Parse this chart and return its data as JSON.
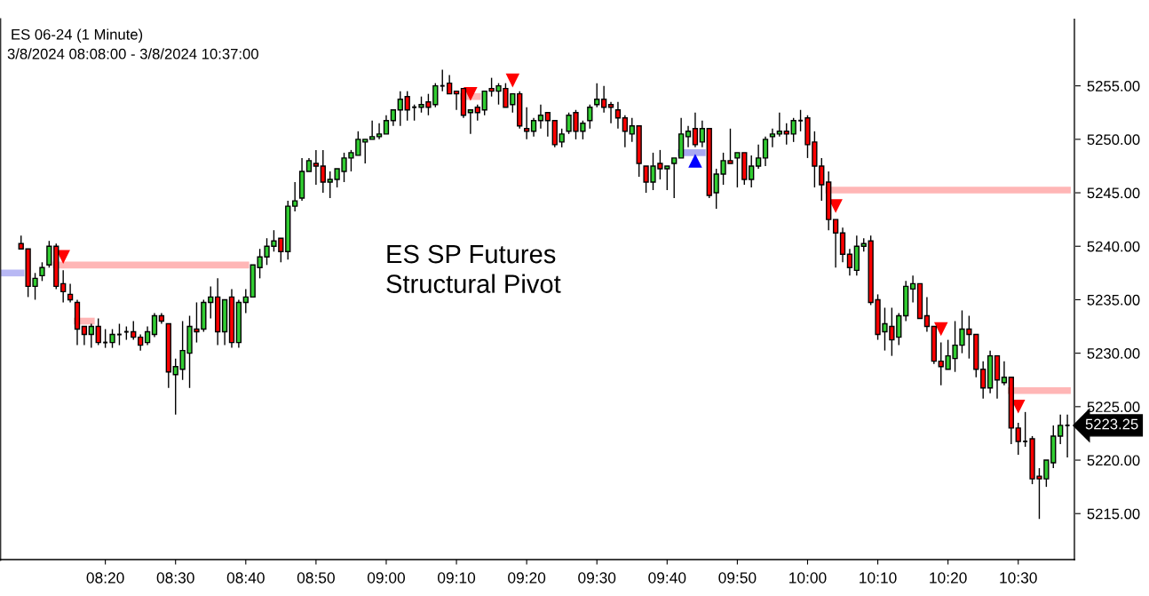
{
  "chart_data": {
    "type": "candlestick",
    "title": "ES 06-24 (1 Minute)",
    "subtitle": "3/8/2024 08:08:00 - 3/8/2024 10:37:00",
    "x": [
      "2024-03-08T08:08",
      "2024-03-08T08:09",
      "2024-03-08T08:10",
      "2024-03-08T08:11",
      "2024-03-08T08:12",
      "2024-03-08T08:13",
      "2024-03-08T08:14",
      "2024-03-08T08:15",
      "2024-03-08T08:16",
      "2024-03-08T08:17",
      "2024-03-08T08:18",
      "2024-03-08T08:19",
      "2024-03-08T08:20",
      "2024-03-08T08:21",
      "2024-03-08T08:22",
      "2024-03-08T08:23",
      "2024-03-08T08:24",
      "2024-03-08T08:25",
      "2024-03-08T08:26",
      "2024-03-08T08:27",
      "2024-03-08T08:28",
      "2024-03-08T08:29",
      "2024-03-08T08:30",
      "2024-03-08T08:31",
      "2024-03-08T08:32",
      "2024-03-08T08:33",
      "2024-03-08T08:34",
      "2024-03-08T08:35",
      "2024-03-08T08:36",
      "2024-03-08T08:37",
      "2024-03-08T08:38",
      "2024-03-08T08:39",
      "2024-03-08T08:40",
      "2024-03-08T08:41",
      "2024-03-08T08:42",
      "2024-03-08T08:43",
      "2024-03-08T08:44",
      "2024-03-08T08:45",
      "2024-03-08T08:46",
      "2024-03-08T08:47",
      "2024-03-08T08:48",
      "2024-03-08T08:49",
      "2024-03-08T08:50",
      "2024-03-08T08:51",
      "2024-03-08T08:52",
      "2024-03-08T08:53",
      "2024-03-08T08:54",
      "2024-03-08T08:55",
      "2024-03-08T08:56",
      "2024-03-08T08:57",
      "2024-03-08T08:58",
      "2024-03-08T08:59",
      "2024-03-08T09:00",
      "2024-03-08T09:01",
      "2024-03-08T09:02",
      "2024-03-08T09:03",
      "2024-03-08T09:04",
      "2024-03-08T09:05",
      "2024-03-08T09:06",
      "2024-03-08T09:07",
      "2024-03-08T09:08",
      "2024-03-08T09:09",
      "2024-03-08T09:10",
      "2024-03-08T09:11",
      "2024-03-08T09:12",
      "2024-03-08T09:13",
      "2024-03-08T09:14",
      "2024-03-08T09:15",
      "2024-03-08T09:16",
      "2024-03-08T09:17",
      "2024-03-08T09:18",
      "2024-03-08T09:19",
      "2024-03-08T09:20",
      "2024-03-08T09:21",
      "2024-03-08T09:22",
      "2024-03-08T09:23",
      "2024-03-08T09:24",
      "2024-03-08T09:25",
      "2024-03-08T09:26",
      "2024-03-08T09:27",
      "2024-03-08T09:28",
      "2024-03-08T09:29",
      "2024-03-08T09:30",
      "2024-03-08T09:31",
      "2024-03-08T09:32",
      "2024-03-08T09:33",
      "2024-03-08T09:34",
      "2024-03-08T09:35",
      "2024-03-08T09:36",
      "2024-03-08T09:37",
      "2024-03-08T09:38",
      "2024-03-08T09:39",
      "2024-03-08T09:40",
      "2024-03-08T09:41",
      "2024-03-08T09:42",
      "2024-03-08T09:43",
      "2024-03-08T09:44",
      "2024-03-08T09:45",
      "2024-03-08T09:46",
      "2024-03-08T09:47",
      "2024-03-08T09:48",
      "2024-03-08T09:49",
      "2024-03-08T09:50",
      "2024-03-08T09:51",
      "2024-03-08T09:52",
      "2024-03-08T09:53",
      "2024-03-08T09:54",
      "2024-03-08T09:55",
      "2024-03-08T09:56",
      "2024-03-08T09:57",
      "2024-03-08T09:58",
      "2024-03-08T09:59",
      "2024-03-08T10:00",
      "2024-03-08T10:01",
      "2024-03-08T10:02",
      "2024-03-08T10:03",
      "2024-03-08T10:04",
      "2024-03-08T10:05",
      "2024-03-08T10:06",
      "2024-03-08T10:07",
      "2024-03-08T10:08",
      "2024-03-08T10:09",
      "2024-03-08T10:10",
      "2024-03-08T10:11",
      "2024-03-08T10:12",
      "2024-03-08T10:13",
      "2024-03-08T10:14",
      "2024-03-08T10:15",
      "2024-03-08T10:16",
      "2024-03-08T10:17",
      "2024-03-08T10:18",
      "2024-03-08T10:19",
      "2024-03-08T10:20",
      "2024-03-08T10:21",
      "2024-03-08T10:22",
      "2024-03-08T10:23",
      "2024-03-08T10:24",
      "2024-03-08T10:25",
      "2024-03-08T10:26",
      "2024-03-08T10:27",
      "2024-03-08T10:28",
      "2024-03-08T10:29",
      "2024-03-08T10:30",
      "2024-03-08T10:31",
      "2024-03-08T10:32",
      "2024-03-08T10:33",
      "2024-03-08T10:34",
      "2024-03-08T10:35",
      "2024-03-08T10:36",
      "2024-03-08T10:37"
    ],
    "ohlc": [
      [
        5240.25,
        5241.0,
        5239.75,
        5239.75
      ],
      [
        5239.75,
        5239.75,
        5235.25,
        5236.25
      ],
      [
        5236.25,
        5237.5,
        5235.0,
        5237.0
      ],
      [
        5237.25,
        5238.5,
        5236.75,
        5238.0
      ],
      [
        5238.25,
        5240.5,
        5238.0,
        5240.0
      ],
      [
        5240.0,
        5240.25,
        5236.0,
        5236.25
      ],
      [
        5236.5,
        5237.75,
        5234.75,
        5235.75
      ],
      [
        5235.5,
        5236.5,
        5234.75,
        5235.0
      ],
      [
        5234.75,
        5235.0,
        5230.75,
        5232.25
      ],
      [
        5232.5,
        5232.5,
        5230.75,
        5231.75
      ],
      [
        5231.75,
        5232.75,
        5230.5,
        5232.5
      ],
      [
        5232.5,
        5233.25,
        5230.75,
        5231.0
      ],
      [
        5231.0,
        5232.25,
        5230.5,
        5231.0
      ],
      [
        5231.0,
        5232.25,
        5230.5,
        5231.75
      ],
      [
        5231.75,
        5232.75,
        5230.75,
        5231.75
      ],
      [
        5232.0,
        5232.5,
        5231.25,
        5232.0
      ],
      [
        5232.0,
        5233.0,
        5231.25,
        5231.5
      ],
      [
        5231.5,
        5231.75,
        5230.25,
        5230.75
      ],
      [
        5231.0,
        5232.5,
        5230.75,
        5232.0
      ],
      [
        5231.75,
        5233.75,
        5231.5,
        5233.5
      ],
      [
        5233.5,
        5233.75,
        5232.75,
        5233.0
      ],
      [
        5232.75,
        5232.75,
        5226.75,
        5228.25
      ],
      [
        5228.0,
        5229.5,
        5224.25,
        5228.75
      ],
      [
        5228.5,
        5233.0,
        5227.5,
        5230.25
      ],
      [
        5230.0,
        5233.5,
        5226.75,
        5232.5
      ],
      [
        5232.25,
        5234.75,
        5231.0,
        5232.0
      ],
      [
        5232.25,
        5235.0,
        5232.0,
        5234.75
      ],
      [
        5234.75,
        5236.25,
        5233.25,
        5235.25
      ],
      [
        5235.25,
        5237.0,
        5230.75,
        5232.0
      ],
      [
        5232.0,
        5235.0,
        5230.75,
        5235.0
      ],
      [
        5235.25,
        5236.0,
        5230.5,
        5231.0
      ],
      [
        5231.0,
        5235.0,
        5230.5,
        5234.75
      ],
      [
        5234.75,
        5236.0,
        5233.75,
        5235.25
      ],
      [
        5235.25,
        5238.25,
        5235.25,
        5238.25
      ],
      [
        5238.0,
        5239.75,
        5237.0,
        5239.0
      ],
      [
        5239.0,
        5240.75,
        5238.25,
        5240.0
      ],
      [
        5240.0,
        5241.5,
        5239.5,
        5240.5
      ],
      [
        5240.75,
        5240.75,
        5238.5,
        5239.5
      ],
      [
        5239.5,
        5244.25,
        5238.75,
        5243.75
      ],
      [
        5243.75,
        5246.0,
        5243.25,
        5244.25
      ],
      [
        5244.5,
        5248.25,
        5244.25,
        5247.0
      ],
      [
        5247.0,
        5248.25,
        5247.0,
        5248.0
      ],
      [
        5247.75,
        5249.0,
        5245.75,
        5247.5
      ],
      [
        5247.5,
        5249.0,
        5245.0,
        5246.0
      ],
      [
        5246.0,
        5247.0,
        5244.5,
        5246.25
      ],
      [
        5246.25,
        5247.25,
        5245.5,
        5247.25
      ],
      [
        5247.0,
        5248.75,
        5246.0,
        5248.25
      ],
      [
        5248.25,
        5249.0,
        5247.0,
        5248.75
      ],
      [
        5248.5,
        5250.75,
        5248.5,
        5250.0
      ],
      [
        5249.75,
        5250.0,
        5247.75,
        5250.0
      ],
      [
        5250.0,
        5251.75,
        5250.0,
        5250.25
      ],
      [
        5250.25,
        5251.5,
        5250.0,
        5250.5
      ],
      [
        5250.5,
        5252.25,
        5250.5,
        5251.75
      ],
      [
        5251.75,
        5252.75,
        5251.25,
        5252.75
      ],
      [
        5252.75,
        5254.5,
        5251.25,
        5253.75
      ],
      [
        5254.0,
        5254.5,
        5251.75,
        5252.75
      ],
      [
        5253.0,
        5253.25,
        5251.75,
        5253.0
      ],
      [
        5253.0,
        5254.0,
        5252.5,
        5253.25
      ],
      [
        5253.5,
        5254.25,
        5252.25,
        5253.0
      ],
      [
        5253.25,
        5255.25,
        5253.0,
        5255.0
      ],
      [
        5255.0,
        5256.5,
        5254.5,
        5255.0
      ],
      [
        5255.25,
        5256.0,
        5254.25,
        5254.25
      ],
      [
        5254.5,
        5254.5,
        5252.75,
        5254.25
      ],
      [
        5254.75,
        5254.75,
        5252.0,
        5252.25
      ],
      [
        5252.5,
        5252.75,
        5250.5,
        5252.75
      ],
      [
        5253.0,
        5253.25,
        5251.75,
        5252.5
      ],
      [
        5252.75,
        5254.5,
        5252.25,
        5254.5
      ],
      [
        5254.75,
        5255.75,
        5254.0,
        5254.5
      ],
      [
        5254.5,
        5255.25,
        5253.25,
        5255.0
      ],
      [
        5254.75,
        5255.25,
        5253.0,
        5253.0
      ],
      [
        5253.25,
        5254.25,
        5252.5,
        5254.25
      ],
      [
        5254.25,
        5254.5,
        5251.0,
        5251.25
      ],
      [
        5251.0,
        5253.0,
        5250.0,
        5250.75
      ],
      [
        5250.75,
        5252.0,
        5250.25,
        5251.75
      ],
      [
        5251.75,
        5253.25,
        5251.0,
        5252.25
      ],
      [
        5252.5,
        5252.5,
        5250.25,
        5251.75
      ],
      [
        5251.75,
        5251.75,
        5249.25,
        5249.5
      ],
      [
        5249.75,
        5251.0,
        5249.25,
        5250.5
      ],
      [
        5250.75,
        5252.5,
        5250.5,
        5252.25
      ],
      [
        5252.5,
        5252.75,
        5250.0,
        5250.75
      ],
      [
        5250.75,
        5251.75,
        5250.0,
        5251.5
      ],
      [
        5251.75,
        5253.25,
        5251.0,
        5253.0
      ],
      [
        5253.25,
        5255.25,
        5253.0,
        5253.75
      ],
      [
        5253.75,
        5255.0,
        5252.5,
        5253.0
      ],
      [
        5253.25,
        5253.5,
        5251.5,
        5253.0
      ],
      [
        5252.75,
        5253.5,
        5251.0,
        5252.0
      ],
      [
        5252.0,
        5252.25,
        5249.25,
        5250.75
      ],
      [
        5250.5,
        5252.0,
        5249.75,
        5251.25
      ],
      [
        5251.25,
        5251.25,
        5246.5,
        5247.75
      ],
      [
        5247.5,
        5247.5,
        5245.0,
        5246.0
      ],
      [
        5246.0,
        5248.75,
        5245.25,
        5247.5
      ],
      [
        5247.75,
        5249.0,
        5246.25,
        5247.25
      ],
      [
        5247.25,
        5247.5,
        5245.25,
        5247.5
      ],
      [
        5247.75,
        5248.25,
        5244.5,
        5248.25
      ],
      [
        5248.25,
        5252.0,
        5248.25,
        5250.5
      ],
      [
        5250.25,
        5251.25,
        5249.25,
        5250.75
      ],
      [
        5251.0,
        5252.5,
        5249.25,
        5249.5
      ],
      [
        5249.75,
        5251.75,
        5249.25,
        5251.0
      ],
      [
        5251.0,
        5251.0,
        5244.5,
        5244.75
      ],
      [
        5245.0,
        5247.25,
        5243.5,
        5246.75
      ],
      [
        5246.75,
        5248.75,
        5245.75,
        5248.0
      ],
      [
        5248.0,
        5251.0,
        5247.75,
        5247.75
      ],
      [
        5248.25,
        5248.75,
        5245.5,
        5248.75
      ],
      [
        5248.75,
        5248.75,
        5245.75,
        5246.25
      ],
      [
        5246.25,
        5248.5,
        5245.5,
        5247.5
      ],
      [
        5247.5,
        5249.5,
        5247.25,
        5248.25
      ],
      [
        5248.25,
        5250.25,
        5247.5,
        5250.0
      ],
      [
        5250.25,
        5251.0,
        5249.25,
        5250.5
      ],
      [
        5250.5,
        5252.5,
        5250.25,
        5250.75
      ],
      [
        5250.75,
        5251.5,
        5249.5,
        5250.5
      ],
      [
        5250.5,
        5252.0,
        5249.75,
        5251.75
      ],
      [
        5251.75,
        5252.75,
        5250.75,
        5251.75
      ],
      [
        5252.0,
        5252.25,
        5248.25,
        5249.5
      ],
      [
        5249.75,
        5250.75,
        5245.5,
        5247.5
      ],
      [
        5247.5,
        5248.25,
        5244.25,
        5245.75
      ],
      [
        5246.0,
        5247.0,
        5241.5,
        5242.5
      ],
      [
        5242.5,
        5242.5,
        5238.0,
        5241.25
      ],
      [
        5241.25,
        5241.75,
        5238.5,
        5239.25
      ],
      [
        5239.25,
        5239.75,
        5237.25,
        5238.0
      ],
      [
        5237.75,
        5241.0,
        5237.25,
        5240.0
      ],
      [
        5240.0,
        5240.75,
        5239.5,
        5240.25
      ],
      [
        5240.5,
        5241.0,
        5234.5,
        5234.75
      ],
      [
        5235.0,
        5235.5,
        5231.25,
        5231.75
      ],
      [
        5232.0,
        5234.25,
        5230.25,
        5232.75
      ],
      [
        5232.5,
        5234.25,
        5229.75,
        5231.25
      ],
      [
        5231.5,
        5233.75,
        5230.75,
        5233.5
      ],
      [
        5233.5,
        5236.75,
        5233.0,
        5236.25
      ],
      [
        5236.0,
        5237.25,
        5234.75,
        5236.5
      ],
      [
        5236.5,
        5236.5,
        5233.25,
        5233.25
      ],
      [
        5233.5,
        5235.25,
        5232.0,
        5232.5
      ],
      [
        5232.5,
        5232.5,
        5229.0,
        5229.25
      ],
      [
        5229.25,
        5231.0,
        5227.0,
        5228.75
      ],
      [
        5228.5,
        5231.25,
        5228.5,
        5229.75
      ],
      [
        5229.5,
        5233.0,
        5228.25,
        5230.75
      ],
      [
        5230.75,
        5234.0,
        5230.0,
        5232.25
      ],
      [
        5232.25,
        5233.5,
        5229.5,
        5231.75
      ],
      [
        5231.75,
        5231.75,
        5227.75,
        5228.5
      ],
      [
        5228.5,
        5229.25,
        5225.75,
        5226.75
      ],
      [
        5226.75,
        5230.25,
        5226.25,
        5229.75
      ],
      [
        5229.75,
        5229.75,
        5225.75,
        5227.5
      ],
      [
        5227.25,
        5229.25,
        5227.0,
        5227.75
      ],
      [
        5227.75,
        5227.75,
        5221.5,
        5223.0
      ],
      [
        5223.0,
        5223.5,
        5220.5,
        5221.75
      ],
      [
        5221.75,
        5224.5,
        5221.25,
        5221.75
      ],
      [
        5222.0,
        5222.25,
        5217.75,
        5218.25
      ],
      [
        5218.5,
        5219.25,
        5214.5,
        5218.25
      ],
      [
        5218.25,
        5220.0,
        5217.5,
        5220.0
      ],
      [
        5219.75,
        5223.25,
        5219.25,
        5222.25
      ],
      [
        5222.25,
        5224.25,
        5221.5,
        5223.25
      ],
      [
        5223.25,
        5224.25,
        5220.25,
        5223.25
      ]
    ],
    "colors": [
      "#ff0000",
      "#ff0000",
      "#32cd32",
      "#32cd32",
      "#32cd32",
      "#ff0000",
      "#ff0000",
      "#ff0000",
      "#ff0000",
      "#ff0000",
      "#32cd32",
      "#ff0000",
      "#000000",
      "#32cd32",
      "#000000",
      "#000000",
      "#ff0000",
      "#ff0000",
      "#32cd32",
      "#32cd32",
      "#ff0000",
      "#ff0000",
      "#32cd32",
      "#32cd32",
      "#32cd32",
      "#ff0000",
      "#32cd32",
      "#32cd32",
      "#ff0000",
      "#32cd32",
      "#ff0000",
      "#32cd32",
      "#32cd32",
      "#32cd32",
      "#32cd32",
      "#32cd32",
      "#32cd32",
      "#ff0000",
      "#32cd32",
      "#32cd32",
      "#32cd32",
      "#32cd32",
      "#ff0000",
      "#ff0000",
      "#32cd32",
      "#32cd32",
      "#32cd32",
      "#32cd32",
      "#32cd32",
      "#32cd32",
      "#32cd32",
      "#32cd32",
      "#32cd32",
      "#32cd32",
      "#32cd32",
      "#ff0000",
      "#000000",
      "#32cd32",
      "#ff0000",
      "#32cd32",
      "#000000",
      "#ff0000",
      "#ff0000",
      "#ff0000",
      "#32cd32",
      "#ff0000",
      "#32cd32",
      "#ff0000",
      "#32cd32",
      "#ff0000",
      "#32cd32",
      "#ff0000",
      "#ff0000",
      "#32cd32",
      "#32cd32",
      "#ff0000",
      "#ff0000",
      "#32cd32",
      "#32cd32",
      "#ff0000",
      "#32cd32",
      "#32cd32",
      "#32cd32",
      "#ff0000",
      "#ff0000",
      "#ff0000",
      "#ff0000",
      "#32cd32",
      "#ff0000",
      "#ff0000",
      "#32cd32",
      "#ff0000",
      "#32cd32",
      "#32cd32",
      "#32cd32",
      "#32cd32",
      "#ff0000",
      "#32cd32",
      "#ff0000",
      "#32cd32",
      "#32cd32",
      "#ff0000",
      "#32cd32",
      "#ff0000",
      "#32cd32",
      "#32cd32",
      "#32cd32",
      "#32cd32",
      "#32cd32",
      "#ff0000",
      "#32cd32",
      "#000000",
      "#ff0000",
      "#ff0000",
      "#ff0000",
      "#ff0000",
      "#ff0000",
      "#ff0000",
      "#ff0000",
      "#32cd32",
      "#32cd32",
      "#ff0000",
      "#ff0000",
      "#32cd32",
      "#ff0000",
      "#32cd32",
      "#32cd32",
      "#32cd32",
      "#ff0000",
      "#ff0000",
      "#ff0000",
      "#ff0000",
      "#32cd32",
      "#32cd32",
      "#32cd32",
      "#ff0000",
      "#ff0000",
      "#ff0000",
      "#32cd32",
      "#ff0000",
      "#32cd32",
      "#ff0000",
      "#ff0000",
      "#000000",
      "#ff0000",
      "#ff0000",
      "#32cd32",
      "#32cd32",
      "#32cd32",
      "#000000"
    ],
    "series": [
      {
        "type": "line",
        "x": [
          "2024-03-08T08:05",
          "2024-03-08T08:08"
        ],
        "values": [
          5237.5,
          5237.5
        ],
        "color": "#b8b8f4"
      },
      {
        "type": "line",
        "x": [
          "2024-03-08T08:13",
          "2024-03-08T08:40"
        ],
        "values": [
          5238.25,
          5238.25
        ],
        "color": "#ffb6b6"
      },
      {
        "type": "line",
        "x": [
          "2024-03-08T08:16",
          "2024-03-08T08:18"
        ],
        "values": [
          5233.0,
          5233.0
        ],
        "color": "#ffb6b6"
      },
      {
        "type": "line",
        "x": [
          "2024-03-08T09:11",
          "2024-03-08T09:13"
        ],
        "values": [
          5254.0,
          5254.0
        ],
        "color": "#ffb6b6"
      },
      {
        "type": "line",
        "x": [
          "2024-03-08T09:42",
          "2024-03-08T09:45"
        ],
        "values": [
          5248.75,
          5248.75
        ],
        "color": "#a8a8f0"
      },
      {
        "type": "line",
        "x": [
          "2024-03-08T10:03",
          "2024-03-08T10:37"
        ],
        "values": [
          5245.25,
          5245.25
        ],
        "color": "#ffb6b6"
      },
      {
        "type": "line",
        "x": [
          "2024-03-08T10:29",
          "2024-03-08T10:37"
        ],
        "values": [
          5226.5,
          5226.5
        ],
        "color": "#ffb6b6"
      },
      {
        "type": "scatter",
        "x": [
          "2024-03-08T08:14",
          "2024-03-08T09:12",
          "2024-03-08T09:18",
          "2024-03-08T10:04",
          "2024-03-08T10:19",
          "2024-03-08T10:30"
        ],
        "values": [
          5239.0,
          5254.25,
          5255.5,
          5243.75,
          5232.25,
          5225.0
        ],
        "color": "#ff0000",
        "marker": "triangle"
      },
      {
        "type": "scatter",
        "x": [
          "2024-03-08T09:44"
        ],
        "values": [
          5248.0
        ],
        "color": "#0000ff",
        "marker": "triangle"
      }
    ],
    "xlim": [
      "2024-03-08T08:05",
      "2024-03-08T10:38"
    ],
    "xticks": [
      {
        "value": "2024-03-08T08:20",
        "label": "08:20"
      },
      {
        "value": "2024-03-08T08:30",
        "label": "08:30"
      },
      {
        "value": "2024-03-08T08:40",
        "label": "08:40"
      },
      {
        "value": "2024-03-08T08:50",
        "label": "08:50"
      },
      {
        "value": "2024-03-08T09:00",
        "label": "09:00"
      },
      {
        "value": "2024-03-08T09:10",
        "label": "09:10"
      },
      {
        "value": "2024-03-08T09:20",
        "label": "09:20"
      },
      {
        "value": "2024-03-08T09:30",
        "label": "09:30"
      },
      {
        "value": "2024-03-08T09:40",
        "label": "09:40"
      },
      {
        "value": "2024-03-08T09:50",
        "label": "09:50"
      },
      {
        "value": "2024-03-08T10:00",
        "label": "10:00"
      },
      {
        "value": "2024-03-08T10:10",
        "label": "10:10"
      },
      {
        "value": "2024-03-08T10:20",
        "label": "10:20"
      },
      {
        "value": "2024-03-08T10:30",
        "label": "10:30"
      }
    ],
    "ylim": [
      5210.7,
      5261.2
    ],
    "yticks": [
      {
        "value": 5215,
        "label": "5215.00"
      },
      {
        "value": 5220,
        "label": "5220.00"
      },
      {
        "value": 5225,
        "label": "5225.00"
      },
      {
        "value": 5230,
        "label": "5230.00"
      },
      {
        "value": 5235,
        "label": "5235.00"
      },
      {
        "value": 5240,
        "label": "5240.00"
      },
      {
        "value": 5245,
        "label": "5245.00"
      },
      {
        "value": 5250,
        "label": "5250.00"
      },
      {
        "value": 5255,
        "label": "5255.00"
      }
    ],
    "annotations": [
      "ES SP Futures\nStructural Pivot",
      "5223.25"
    ]
  }
}
